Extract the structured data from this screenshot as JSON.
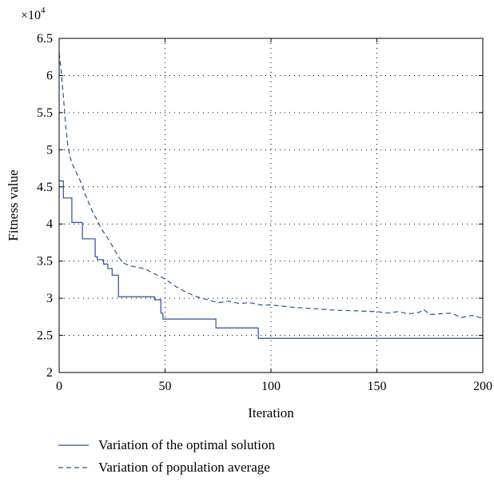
{
  "chart_data": {
    "type": "line",
    "title": "",
    "xlabel": "Iteration",
    "ylabel": "Fitness value",
    "y_multiplier_label": "×10",
    "y_multiplier_exponent": "4",
    "xlim": [
      0,
      200
    ],
    "ylim": [
      2,
      6.5
    ],
    "x_ticks": [
      0,
      50,
      100,
      150,
      200
    ],
    "x_tick_labels": [
      "0",
      "50",
      "100",
      "150",
      "200"
    ],
    "y_ticks": [
      2,
      2.5,
      3,
      3.5,
      4,
      4.5,
      5,
      5.5,
      6,
      6.5
    ],
    "y_tick_labels": [
      "2",
      "2.5",
      "3",
      "3.5",
      "4",
      "4.5",
      "5",
      "5.5",
      "6",
      "6.5"
    ],
    "grid": true,
    "legend_position": "bottom",
    "series": [
      {
        "name": "Variation of the optimal solution",
        "style": "solid",
        "color": "#2b4f9e",
        "step": true,
        "x": [
          0,
          2,
          5,
          6,
          11,
          13,
          17,
          18,
          21,
          23,
          25,
          28,
          40,
          45,
          48,
          49,
          74,
          94,
          200
        ],
        "y": [
          4.58,
          4.35,
          4.35,
          4.02,
          3.8,
          3.8,
          3.56,
          3.52,
          3.46,
          3.4,
          3.31,
          3.02,
          3.02,
          2.98,
          2.8,
          2.72,
          2.6,
          2.46,
          2.46
        ]
      },
      {
        "name": "Variation of population average",
        "style": "dashed",
        "color": "#2b4f9e",
        "step": false,
        "x": [
          0,
          1,
          2,
          3,
          4,
          5,
          6,
          8,
          10,
          12,
          14,
          16,
          18,
          20,
          22,
          24,
          26,
          28,
          30,
          33,
          36,
          40,
          45,
          50,
          55,
          60,
          65,
          70,
          75,
          80,
          85,
          90,
          95,
          100,
          110,
          120,
          130,
          140,
          150,
          155,
          160,
          165,
          170,
          172,
          175,
          180,
          185,
          190,
          195,
          200
        ],
        "y": [
          6.3,
          6.05,
          5.72,
          5.35,
          5.08,
          4.92,
          4.82,
          4.7,
          4.58,
          4.42,
          4.28,
          4.15,
          4.05,
          3.93,
          3.85,
          3.76,
          3.66,
          3.56,
          3.48,
          3.44,
          3.42,
          3.4,
          3.33,
          3.26,
          3.16,
          3.08,
          3.02,
          2.98,
          2.94,
          2.96,
          2.93,
          2.94,
          2.91,
          2.91,
          2.88,
          2.86,
          2.84,
          2.83,
          2.82,
          2.8,
          2.82,
          2.79,
          2.81,
          2.85,
          2.78,
          2.79,
          2.8,
          2.74,
          2.77,
          2.73
        ]
      }
    ]
  }
}
